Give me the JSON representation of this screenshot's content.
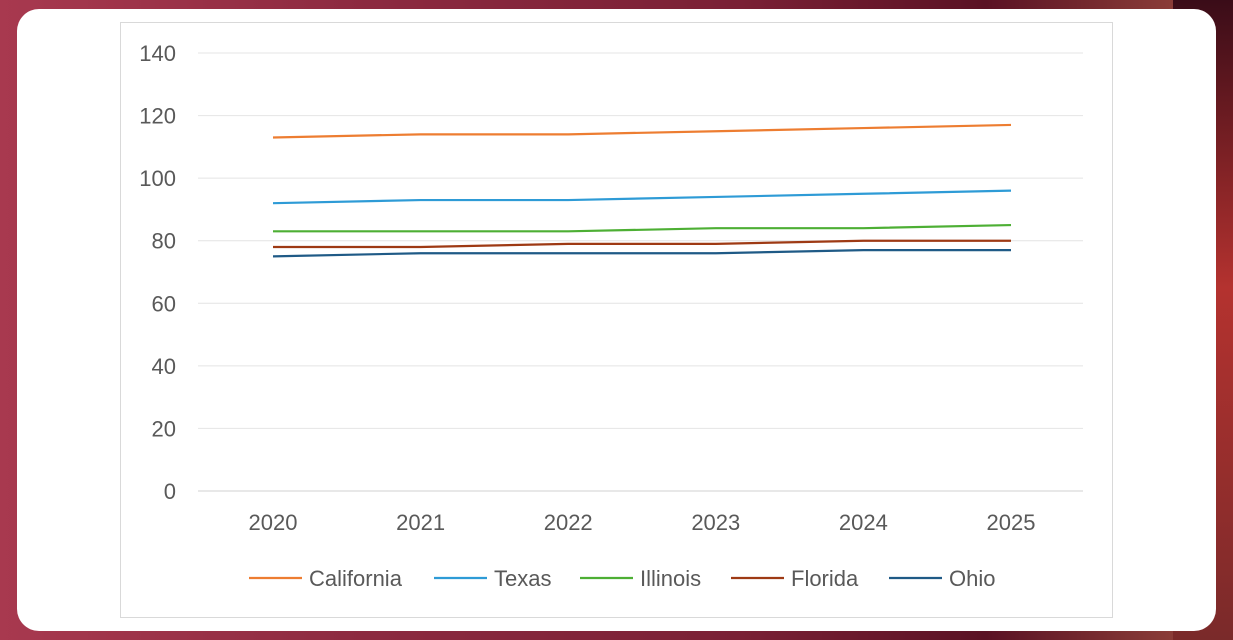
{
  "chart_data": {
    "type": "line",
    "categories": [
      "2020",
      "2021",
      "2022",
      "2023",
      "2024",
      "2025"
    ],
    "y_ticks": [
      "0",
      "20",
      "40",
      "60",
      "80",
      "100",
      "120",
      "140"
    ],
    "ylim": [
      0,
      140
    ],
    "grid": true,
    "legend_position": "bottom",
    "series": [
      {
        "name": "California",
        "color": "#ed7d31",
        "values": [
          113,
          114,
          114,
          115,
          116,
          117
        ]
      },
      {
        "name": "Texas",
        "color": "#2e9bd6",
        "values": [
          92,
          93,
          93,
          94,
          95,
          96
        ]
      },
      {
        "name": "Illinois",
        "color": "#4daf34",
        "values": [
          83,
          83,
          83,
          84,
          84,
          85
        ]
      },
      {
        "name": "Florida",
        "color": "#9e3a14",
        "values": [
          78,
          78,
          79,
          79,
          80,
          80
        ]
      },
      {
        "name": "Ohio",
        "color": "#1f5a86",
        "values": [
          75,
          76,
          76,
          76,
          77,
          77
        ]
      }
    ]
  }
}
